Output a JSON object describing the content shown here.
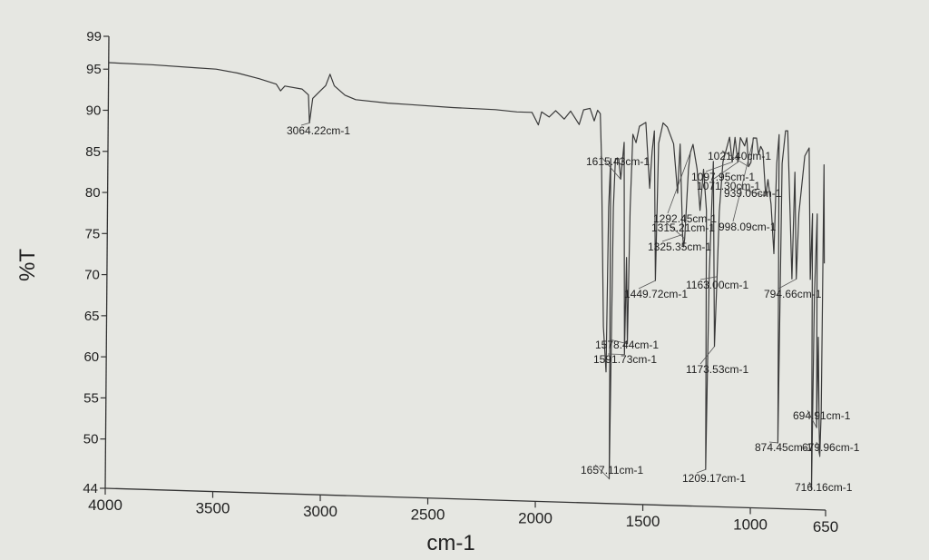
{
  "chart_data": {
    "type": "line",
    "title": "",
    "xlabel": "cm-1",
    "ylabel": "%T",
    "xlim": [
      4000,
      650
    ],
    "ylim": [
      44,
      99
    ],
    "x_reversed": true,
    "grid": false,
    "x_ticks": [
      "4000",
      "3500",
      "3000",
      "2500",
      "2000",
      "1500",
      "1000",
      "650"
    ],
    "y_ticks": [
      "99",
      "95",
      "90",
      "85",
      "80",
      "75",
      "70",
      "65",
      "60",
      "55",
      "50",
      "44"
    ],
    "series": [
      {
        "points": [
          [
            4000,
            95.8
          ],
          [
            3800,
            95.7
          ],
          [
            3600,
            95.5
          ],
          [
            3500,
            95.4
          ],
          [
            3400,
            95.0
          ],
          [
            3300,
            94.4
          ],
          [
            3220,
            93.8
          ],
          [
            3200,
            93.0
          ],
          [
            3180,
            93.6
          ],
          [
            3100,
            93.3
          ],
          [
            3070,
            92.6
          ],
          [
            3064,
            89.2
          ],
          [
            3050,
            92.2
          ],
          [
            3020,
            93.0
          ],
          [
            2990,
            93.8
          ],
          [
            2970,
            95.2
          ],
          [
            2950,
            93.8
          ],
          [
            2900,
            92.7
          ],
          [
            2850,
            92.2
          ],
          [
            2700,
            91.9
          ],
          [
            2600,
            91.8
          ],
          [
            2400,
            91.6
          ],
          [
            2200,
            91.5
          ],
          [
            2100,
            91.3
          ],
          [
            2030,
            91.3
          ],
          [
            2000,
            89.8
          ],
          [
            1985,
            91.4
          ],
          [
            1950,
            90.8
          ],
          [
            1920,
            91.6
          ],
          [
            1880,
            90.6
          ],
          [
            1850,
            91.6
          ],
          [
            1810,
            90.0
          ],
          [
            1790,
            91.8
          ],
          [
            1760,
            92.0
          ],
          [
            1740,
            90.5
          ],
          [
            1725,
            91.8
          ],
          [
            1712,
            91.4
          ],
          [
            1705,
            86.0
          ],
          [
            1690,
            65.5
          ],
          [
            1676,
            60.0
          ],
          [
            1670,
            80.0
          ],
          [
            1662,
            86.0
          ],
          [
            1657,
            47.0
          ],
          [
            1648,
            80.0
          ],
          [
            1640,
            86.0
          ],
          [
            1625,
            86.0
          ],
          [
            1615,
            83.5
          ],
          [
            1600,
            88.0
          ],
          [
            1591,
            62.2
          ],
          [
            1585,
            74.0
          ],
          [
            1578,
            63.5
          ],
          [
            1570,
            80.0
          ],
          [
            1560,
            89.0
          ],
          [
            1545,
            88.0
          ],
          [
            1530,
            90.0
          ],
          [
            1500,
            90.5
          ],
          [
            1480,
            82.5
          ],
          [
            1470,
            87.0
          ],
          [
            1460,
            89.5
          ],
          [
            1449.7,
            71.3
          ],
          [
            1440,
            88.0
          ],
          [
            1420,
            90.5
          ],
          [
            1400,
            90.0
          ],
          [
            1370,
            88.0
          ],
          [
            1360,
            85.0
          ],
          [
            1350,
            82.0
          ],
          [
            1340,
            88.0
          ],
          [
            1325,
            77.0
          ],
          [
            1320,
            75.5
          ],
          [
            1315,
            76.5
          ],
          [
            1300,
            85.0
          ],
          [
            1292,
            87.0
          ],
          [
            1280,
            88.0
          ],
          [
            1260,
            85.0
          ],
          [
            1245,
            80.0
          ],
          [
            1230,
            85.0
          ],
          [
            1215,
            80.0
          ],
          [
            1209,
            48.5
          ],
          [
            1200,
            72.0
          ],
          [
            1185,
            86.0
          ],
          [
            1173,
            63.5
          ],
          [
            1163,
            72.0
          ],
          [
            1155,
            80.0
          ],
          [
            1140,
            86.0
          ],
          [
            1110,
            89.0
          ],
          [
            1097,
            86.0
          ],
          [
            1085,
            89.0
          ],
          [
            1071,
            86.0
          ],
          [
            1060,
            89.0
          ],
          [
            1040,
            88.0
          ],
          [
            1030,
            89.0
          ],
          [
            1021,
            85.5
          ],
          [
            1010,
            86.0
          ],
          [
            1000,
            89.0
          ],
          [
            985,
            89.0
          ],
          [
            975,
            87.0
          ],
          [
            965,
            88.0
          ],
          [
            955,
            87.5
          ],
          [
            940,
            82.0
          ],
          [
            930,
            84.0
          ],
          [
            915,
            81.0
          ],
          [
            900,
            75.0
          ],
          [
            890,
            86.0
          ],
          [
            880,
            89.5
          ],
          [
            874.5,
            52.0
          ],
          [
            865,
            86.0
          ],
          [
            850,
            90.0
          ],
          [
            840,
            90.0
          ],
          [
            826,
            80.0
          ],
          [
            815,
            72.0
          ],
          [
            805,
            85.0
          ],
          [
            794.7,
            72.0
          ],
          [
            785,
            80.0
          ],
          [
            760,
            87.0
          ],
          [
            740,
            88.0
          ],
          [
            730,
            72.0
          ],
          [
            722,
            80.0
          ],
          [
            716,
            46.5
          ],
          [
            710,
            70.0
          ],
          [
            700,
            80.0
          ],
          [
            694.9,
            54.0
          ],
          [
            690,
            65.0
          ],
          [
            683,
            54.0
          ],
          [
            679,
            50.5
          ],
          [
            674,
            56.0
          ],
          [
            670,
            86.0
          ],
          [
            665,
            74.0
          ]
        ]
      }
    ],
    "annotations": [
      {
        "text": "3064.22cm-1",
        "x": 3064,
        "y": 89.2
      },
      {
        "text": "1615.43cm-1",
        "x": 1615,
        "y": 83.5
      },
      {
        "text": "1021.40cm-1",
        "x": 1021,
        "y": 85.5
      },
      {
        "text": "1097.95cm-1",
        "x": 1097,
        "y": 86.0
      },
      {
        "text": "1071.30cm-1",
        "x": 1071,
        "y": 86.0
      },
      {
        "text": "939.06cm-1",
        "x": 940,
        "y": 82.0
      },
      {
        "text": "1292.45cm-1",
        "x": 1292,
        "y": 87.0
      },
      {
        "text": "1315.21cm-1",
        "x": 1315,
        "y": 76.5
      },
      {
        "text": "998.09cm-1",
        "x": 998,
        "y": 89.0
      },
      {
        "text": "1325.35cm-1",
        "x": 1325,
        "y": 77.0
      },
      {
        "text": "1449.72cm-1",
        "x": 1449.7,
        "y": 71.3
      },
      {
        "text": "1163.00cm-1",
        "x": 1163,
        "y": 72.0
      },
      {
        "text": "794.66cm-1",
        "x": 794.7,
        "y": 72.0
      },
      {
        "text": "1578.44cm-1",
        "x": 1578,
        "y": 63.5
      },
      {
        "text": "1591.73cm-1",
        "x": 1591,
        "y": 62.2
      },
      {
        "text": "1173.53cm-1",
        "x": 1173,
        "y": 63.5
      },
      {
        "text": "694.91cm-1",
        "x": 694.9,
        "y": 54.0
      },
      {
        "text": "874.45cm-1",
        "x": 874.5,
        "y": 52.0
      },
      {
        "text": "679.96cm-1",
        "x": 679,
        "y": 50.5
      },
      {
        "text": "1657.11cm-1",
        "x": 1657,
        "y": 47.0
      },
      {
        "text": "1209.17cm-1",
        "x": 1209,
        "y": 48.5
      },
      {
        "text": "716.16cm-1",
        "x": 716,
        "y": 46.5
      }
    ]
  }
}
